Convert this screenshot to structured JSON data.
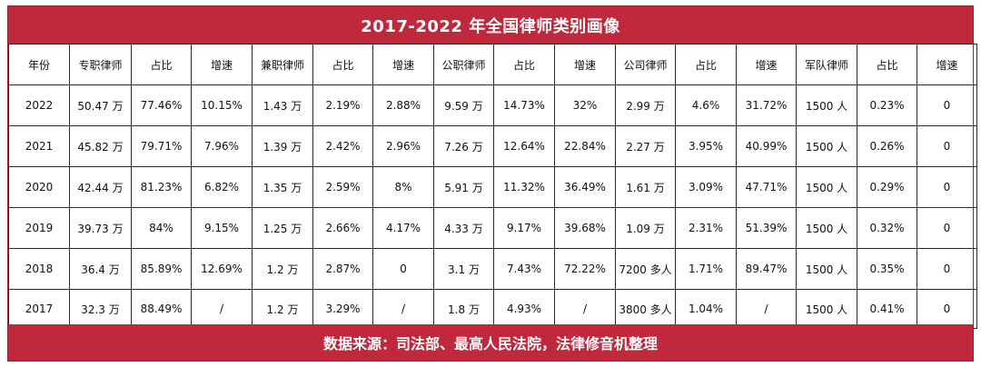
{
  "title": "2017-2022 年全国律师类别画像",
  "footer": "数据来源：司法部、最高人民法院，法律修音机整理",
  "colors": {
    "header_bg": "#c0283c",
    "header_text": "#ffffff",
    "grid": "#2a2a2a"
  },
  "chart_data": {
    "type": "table",
    "columns": [
      "年份",
      "专职律师",
      "占比",
      "增速",
      "兼职律师",
      "占比",
      "增速",
      "公职律师",
      "占比",
      "增速",
      "公司律师",
      "占比",
      "增速",
      "军队律师",
      "占比",
      "增速"
    ],
    "rows": [
      [
        "2022",
        "50.47 万",
        "77.46%",
        "10.15%",
        "1.43 万",
        "2.19%",
        "2.88%",
        "9.59 万",
        "14.73%",
        "32%",
        "2.99 万",
        "4.6%",
        "31.72%",
        "1500 人",
        "0.23%",
        "0"
      ],
      [
        "2021",
        "45.82 万",
        "79.71%",
        "7.96%",
        "1.39 万",
        "2.42%",
        "2.96%",
        "7.26 万",
        "12.64%",
        "22.84%",
        "2.27 万",
        "3.95%",
        "40.99%",
        "1500 人",
        "0.26%",
        "0"
      ],
      [
        "2020",
        "42.44 万",
        "81.23%",
        "6.82%",
        "1.35 万",
        "2.59%",
        "8%",
        "5.91 万",
        "11.32%",
        "36.49%",
        "1.61 万",
        "3.09%",
        "47.71%",
        "1500 人",
        "0.29%",
        "0"
      ],
      [
        "2019",
        "39.73 万",
        "84%",
        "9.15%",
        "1.25 万",
        "2.66%",
        "4.17%",
        "4.33 万",
        "9.17%",
        "39.68%",
        "1.09 万",
        "2.31%",
        "51.39%",
        "1500 人",
        "0.32%",
        "0"
      ],
      [
        "2018",
        "36.4 万",
        "85.89%",
        "12.69%",
        "1.2 万",
        "2.87%",
        "0",
        "3.1 万",
        "7.43%",
        "72.22%",
        "7200 多人",
        "1.71%",
        "89.47%",
        "1500 人",
        "0.35%",
        "0"
      ],
      [
        "2017",
        "32.3 万",
        "88.49%",
        "/",
        "1.2 万",
        "3.29%",
        "/",
        "1.8 万",
        "4.93%",
        "/",
        "3800 多人",
        "1.04%",
        "/",
        "1500 人",
        "0.41%",
        "0"
      ]
    ]
  }
}
